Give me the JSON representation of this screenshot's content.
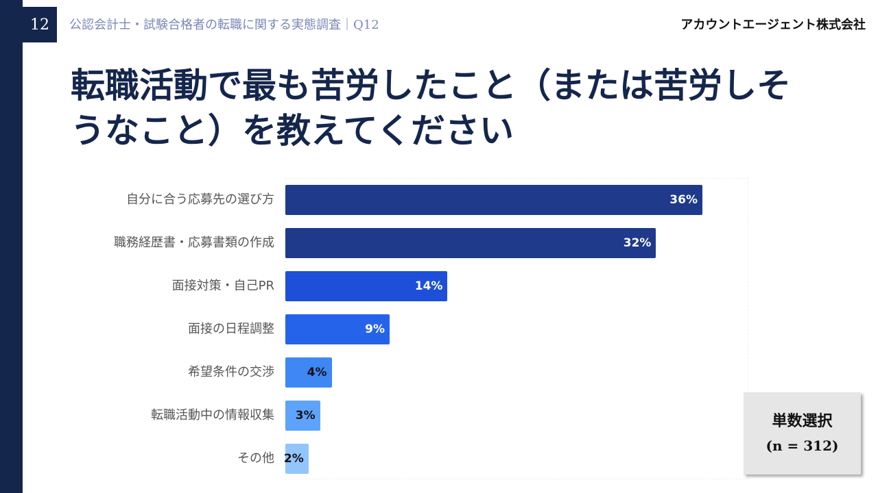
{
  "header": {
    "page_number": "12",
    "survey_title": "公認会計士・試験合格者の転職に関する実態調査｜Q12",
    "company": "アカウントエージェント株式会社"
  },
  "title": "転職活動で最も苦労したこと（または苦労しそうなこと）を教えてください",
  "badge": {
    "line1": "単数選択",
    "line2": "(n = 312)"
  },
  "colors": {
    "navy": "#15264d",
    "bar_colors": [
      "#1f3a8a",
      "#1f3a8a",
      "#1d4fd8",
      "#2563eb",
      "#3f87f5",
      "#5ea3fb",
      "#93c5fd"
    ],
    "value_colors": [
      "#ffffff",
      "#ffffff",
      "#ffffff",
      "#ffffff",
      "#111111",
      "#111111",
      "#111111"
    ]
  },
  "chart_data": {
    "type": "bar",
    "orientation": "horizontal",
    "categories": [
      "自分に合う応募先の選び方",
      "職務経歴書・応募書類の作成",
      "面接対策・自己PR",
      "面接の日程調整",
      "希望条件の交渉",
      "転職活動中の情報収集",
      "その他"
    ],
    "values": [
      36,
      32,
      14,
      9,
      4,
      3,
      2
    ],
    "value_labels": [
      "36%",
      "32%",
      "14%",
      "9%",
      "4%",
      "3%",
      "2%"
    ],
    "unit": "%",
    "xlim": [
      0,
      40
    ],
    "grid": false,
    "legend": "none"
  }
}
